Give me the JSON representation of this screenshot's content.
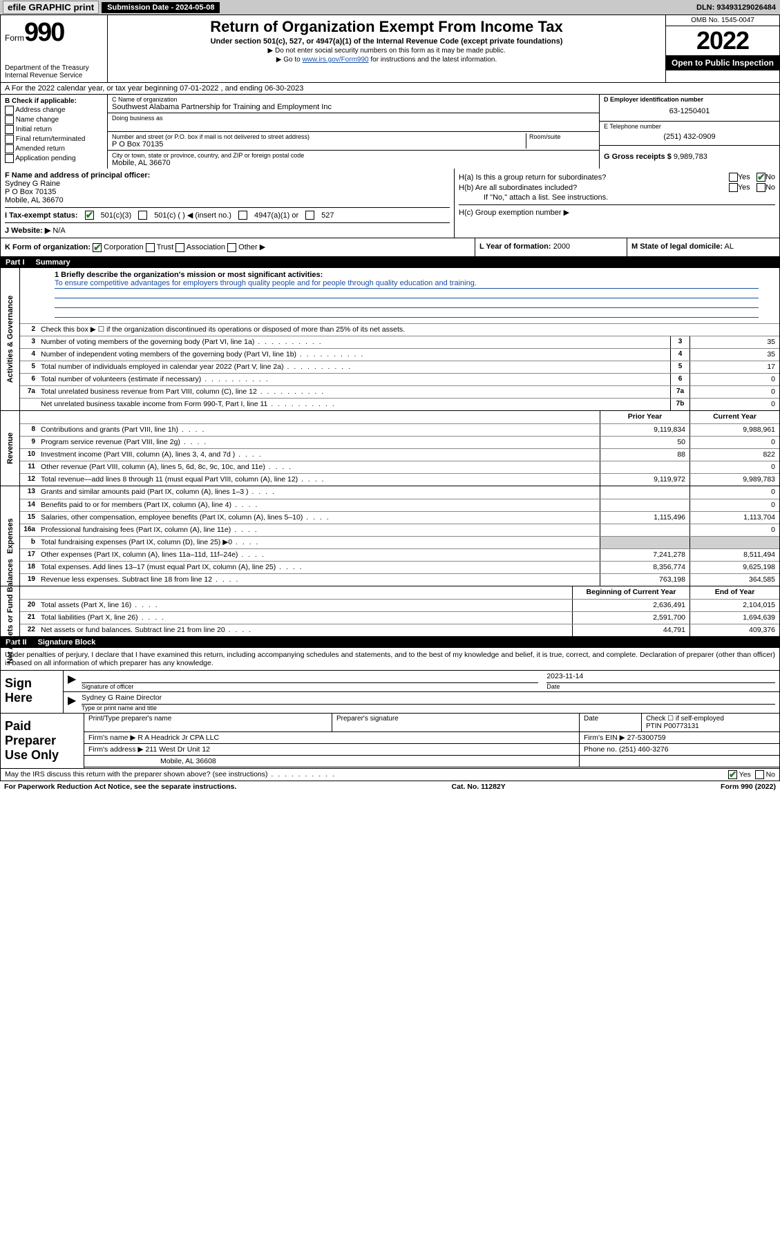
{
  "topbar": {
    "efile": "efile GRAPHIC print",
    "subdate_label": "Submission Date - 2024-05-08",
    "dln": "DLN: 93493129026484"
  },
  "header": {
    "form_word": "Form",
    "form_num": "990",
    "dept": "Department of the Treasury",
    "irs": "Internal Revenue Service",
    "title": "Return of Organization Exempt From Income Tax",
    "sub": "Under section 501(c), 527, or 4947(a)(1) of the Internal Revenue Code (except private foundations)",
    "note1": "▶ Do not enter social security numbers on this form as it may be made public.",
    "note2_pre": "▶ Go to ",
    "note2_link": "www.irs.gov/Form990",
    "note2_post": " for instructions and the latest information.",
    "omb": "OMB No. 1545-0047",
    "year": "2022",
    "open": "Open to Public Inspection"
  },
  "rowA": "A   For the 2022 calendar year, or tax year beginning 07-01-2022    , and ending 06-30-2023",
  "colB": {
    "head": "B Check if applicable:",
    "items": [
      "Address change",
      "Name change",
      "Initial return",
      "Final return/terminated",
      "Amended return",
      "Application pending"
    ]
  },
  "colC": {
    "name_lbl": "C Name of organization",
    "name": "Southwest Alabama Partnership for Training and Employment Inc",
    "dba_lbl": "Doing business as",
    "addr_lbl": "Number and street (or P.O. box if mail is not delivered to street address)",
    "room_lbl": "Room/suite",
    "addr": "P O Box 70135",
    "city_lbl": "City or town, state or province, country, and ZIP or foreign postal code",
    "city": "Mobile, AL  36670"
  },
  "colD": {
    "ein_lbl": "D Employer identification number",
    "ein": "63-1250401",
    "tel_lbl": "E Telephone number",
    "tel": "(251) 432-0909",
    "gross_lbl": "G Gross receipts $",
    "gross": "9,989,783"
  },
  "rowF": {
    "lbl": "F  Name and address of principal officer:",
    "name": "Sydney G Raine",
    "addr1": "P O Box 70135",
    "addr2": "Mobile, AL  36670"
  },
  "rowH": {
    "ha": "H(a)  Is this a group return for subordinates?",
    "hb": "H(b)  Are all subordinates included?",
    "hb_note": "If \"No,\" attach a list. See instructions.",
    "hc": "H(c)  Group exemption number ▶",
    "yes": "Yes",
    "no": "No"
  },
  "rowI": {
    "lbl": "I     Tax-exempt status:",
    "o1": "501(c)(3)",
    "o2": "501(c) (   ) ◀ (insert no.)",
    "o3": "4947(a)(1) or",
    "o4": "527"
  },
  "rowJ": {
    "lbl": "J    Website: ▶",
    "val": "N/A"
  },
  "rowK": {
    "lbl": "K Form of organization:",
    "corp": "Corporation",
    "trust": "Trust",
    "assoc": "Association",
    "other": "Other ▶"
  },
  "rowL": {
    "lbl": "L Year of formation:",
    "val": "2000"
  },
  "rowM": {
    "lbl": "M State of legal domicile:",
    "val": "AL"
  },
  "part1": {
    "num": "Part I",
    "title": "Summary"
  },
  "summary": {
    "q1a": "1  Briefly describe the organization's mission or most significant activities:",
    "q1b": "To ensure competitive advantages for employers through quality people and for people through quality education and training.",
    "q2": "Check this box ▶ ☐  if the organization discontinued its operations or disposed of more than 25% of its net assets.",
    "rows_gov": [
      {
        "n": "3",
        "d": "Number of voting members of the governing body (Part VI, line 1a)",
        "b": "3",
        "v": "35"
      },
      {
        "n": "4",
        "d": "Number of independent voting members of the governing body (Part VI, line 1b)",
        "b": "4",
        "v": "35"
      },
      {
        "n": "5",
        "d": "Total number of individuals employed in calendar year 2022 (Part V, line 2a)",
        "b": "5",
        "v": "17"
      },
      {
        "n": "6",
        "d": "Total number of volunteers (estimate if necessary)",
        "b": "6",
        "v": "0"
      },
      {
        "n": "7a",
        "d": "Total unrelated business revenue from Part VIII, column (C), line 12",
        "b": "7a",
        "v": "0"
      },
      {
        "n": "",
        "d": "Net unrelated business taxable income from Form 990-T, Part I, line 11",
        "b": "7b",
        "v": "0"
      }
    ],
    "col_prior": "Prior Year",
    "col_curr": "Current Year",
    "rows_rev": [
      {
        "n": "8",
        "d": "Contributions and grants (Part VIII, line 1h)",
        "p": "9,119,834",
        "c": "9,988,961"
      },
      {
        "n": "9",
        "d": "Program service revenue (Part VIII, line 2g)",
        "p": "50",
        "c": "0"
      },
      {
        "n": "10",
        "d": "Investment income (Part VIII, column (A), lines 3, 4, and 7d )",
        "p": "88",
        "c": "822"
      },
      {
        "n": "11",
        "d": "Other revenue (Part VIII, column (A), lines 5, 6d, 8c, 9c, 10c, and 11e)",
        "p": "",
        "c": "0"
      },
      {
        "n": "12",
        "d": "Total revenue—add lines 8 through 11 (must equal Part VIII, column (A), line 12)",
        "p": "9,119,972",
        "c": "9,989,783"
      }
    ],
    "rows_exp": [
      {
        "n": "13",
        "d": "Grants and similar amounts paid (Part IX, column (A), lines 1–3 )",
        "p": "",
        "c": "0"
      },
      {
        "n": "14",
        "d": "Benefits paid to or for members (Part IX, column (A), line 4)",
        "p": "",
        "c": "0"
      },
      {
        "n": "15",
        "d": "Salaries, other compensation, employee benefits (Part IX, column (A), lines 5–10)",
        "p": "1,115,496",
        "c": "1,113,704"
      },
      {
        "n": "16a",
        "d": "Professional fundraising fees (Part IX, column (A), line 11e)",
        "p": "",
        "c": "0"
      },
      {
        "n": "b",
        "d": "Total fundraising expenses (Part IX, column (D), line 25) ▶0",
        "p": "GREY",
        "c": "GREY"
      },
      {
        "n": "17",
        "d": "Other expenses (Part IX, column (A), lines 11a–11d, 11f–24e)",
        "p": "7,241,278",
        "c": "8,511,494"
      },
      {
        "n": "18",
        "d": "Total expenses. Add lines 13–17 (must equal Part IX, column (A), line 25)",
        "p": "8,356,774",
        "c": "9,625,198"
      },
      {
        "n": "19",
        "d": "Revenue less expenses. Subtract line 18 from line 12",
        "p": "763,198",
        "c": "364,585"
      }
    ],
    "col_beg": "Beginning of Current Year",
    "col_end": "End of Year",
    "rows_na": [
      {
        "n": "20",
        "d": "Total assets (Part X, line 16)",
        "p": "2,636,491",
        "c": "2,104,015"
      },
      {
        "n": "21",
        "d": "Total liabilities (Part X, line 26)",
        "p": "2,591,700",
        "c": "1,694,639"
      },
      {
        "n": "22",
        "d": "Net assets or fund balances. Subtract line 21 from line 20",
        "p": "44,791",
        "c": "409,376"
      }
    ],
    "vlabels": {
      "gov": "Activities & Governance",
      "rev": "Revenue",
      "exp": "Expenses",
      "na": "Net Assets or Fund Balances"
    }
  },
  "part2": {
    "num": "Part II",
    "title": "Signature Block"
  },
  "sig": {
    "decl": "Under penalties of perjury, I declare that I have examined this return, including accompanying schedules and statements, and to the best of my knowledge and belief, it is true, correct, and complete. Declaration of preparer (other than officer) is based on all information of which preparer has any knowledge.",
    "sign_here": "Sign Here",
    "sig_officer": "Signature of officer",
    "date_lbl": "Date",
    "date": "2023-11-14",
    "name_title": "Sydney G Raine  Director",
    "name_cap": "Type or print name and title",
    "paid": "Paid Preparer Use Only",
    "h1": "Print/Type preparer's name",
    "h2": "Preparer's signature",
    "h3": "Date",
    "h4a": "Check ☐ if self-employed",
    "h4b": "PTIN",
    "ptin": "P00773131",
    "firm_name_lbl": "Firm's name    ▶",
    "firm_name": "R A Headrick Jr CPA LLC",
    "firm_ein_lbl": "Firm's EIN ▶",
    "firm_ein": "27-5300759",
    "firm_addr_lbl": "Firm's address ▶",
    "firm_addr1": "211 West Dr Unit 12",
    "firm_addr2": "Mobile, AL  36608",
    "phone_lbl": "Phone no.",
    "phone": "(251) 460-3276",
    "discuss": "May the IRS discuss this return with the preparer shown above? (see instructions)"
  },
  "footer": {
    "pra": "For Paperwork Reduction Act Notice, see the separate instructions.",
    "cat": "Cat. No. 11282Y",
    "form": "Form 990 (2022)"
  },
  "colors": {
    "link": "#1a4fa3",
    "check": "#2a7a2a",
    "grey": "#d0d0d0"
  }
}
